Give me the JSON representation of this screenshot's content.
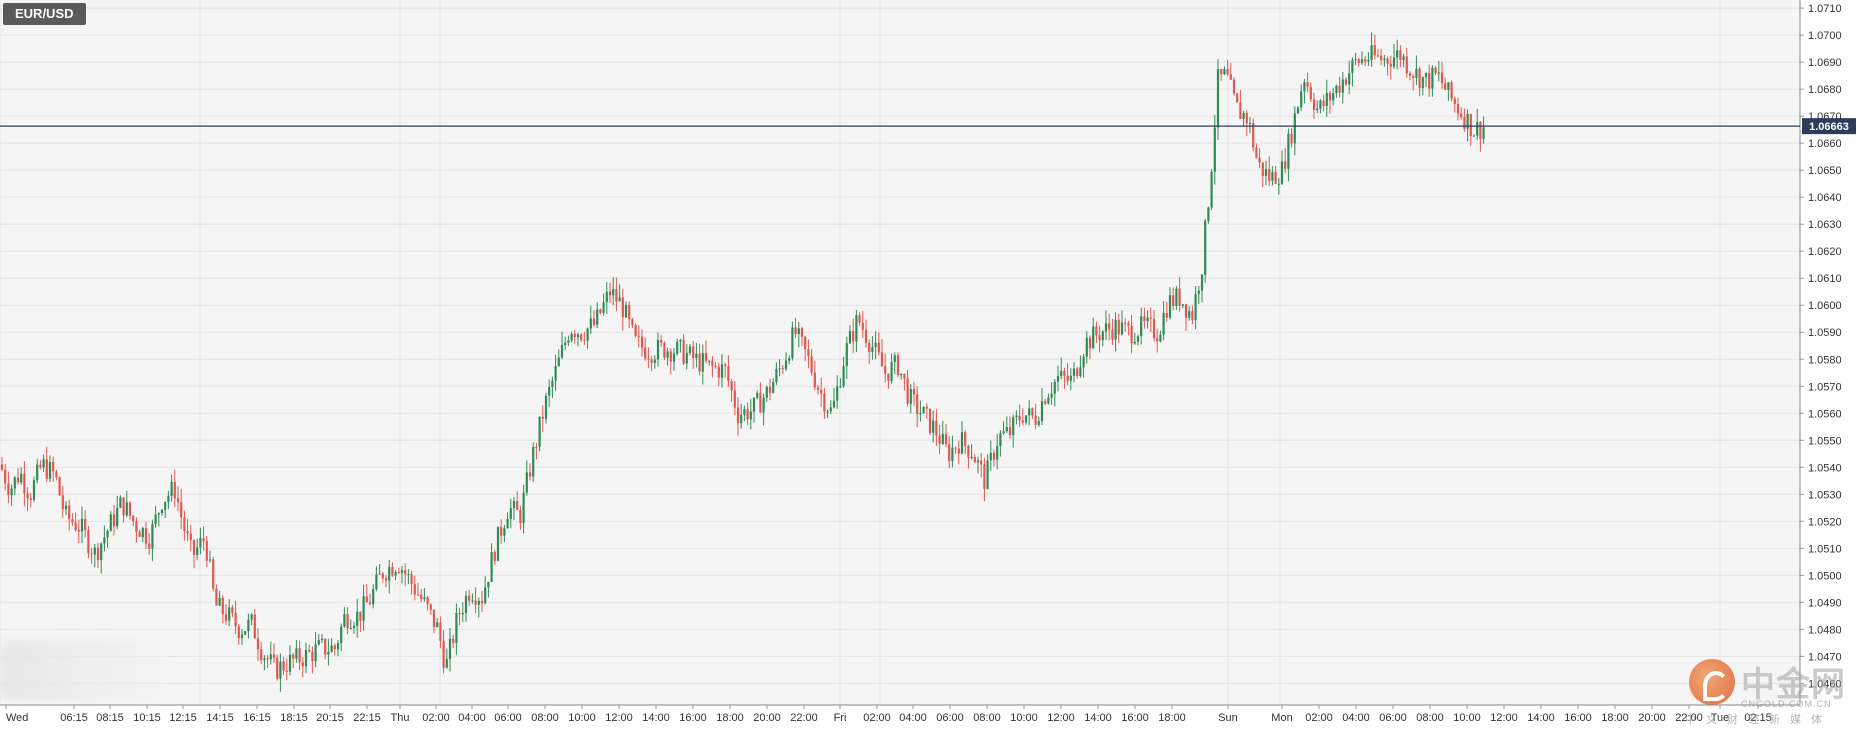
{
  "symbol": "EUR/USD",
  "current_price_label": "1.06663",
  "colors": {
    "up": "#2e8b57",
    "down": "#e0574f",
    "price_line": "#2b3d5a",
    "price_label_bg": "#2b3d5a",
    "grid": "#e4e4e4",
    "plot_bg": "#f5f5f5"
  },
  "watermark": {
    "title": "中金网",
    "url": "CNGOLD.COM.CN",
    "subtitle": "中文财经新媒体"
  },
  "chart_data": {
    "type": "candlestick",
    "ylim": [
      1.0452,
      1.0713
    ],
    "y_ticks": [
      "1.0460",
      "1.0470",
      "1.0480",
      "1.0490",
      "1.0500",
      "1.0510",
      "1.0520",
      "1.0530",
      "1.0540",
      "1.0550",
      "1.0560",
      "1.0570",
      "1.0580",
      "1.0590",
      "1.0600",
      "1.0610",
      "1.0620",
      "1.0630",
      "1.0640",
      "1.0650",
      "1.0660",
      "1.0670",
      "1.0680",
      "1.0690",
      "1.0700",
      "1.0710"
    ],
    "x_tick_labels": [
      "Wed",
      "06:15",
      "08:15",
      "10:15",
      "12:15",
      "14:15",
      "16:15",
      "18:15",
      "20:15",
      "22:15",
      "Thu",
      "02:00",
      "04:00",
      "06:00",
      "08:00",
      "10:00",
      "12:00",
      "14:00",
      "16:00",
      "18:00",
      "20:00",
      "22:00",
      "Fri",
      "02:00",
      "04:00",
      "06:00",
      "08:00",
      "10:00",
      "12:00",
      "14:00",
      "16:00",
      "18:00",
      "Sun",
      "Mon",
      "02:00",
      "04:00",
      "06:00",
      "08:00",
      "10:00",
      "12:00",
      "14:00",
      "16:00",
      "18:00",
      "20:00",
      "22:00",
      "Tue",
      "02:15"
    ],
    "current_price": 1.06663,
    "price_path": [
      [
        0,
        1.0541
      ],
      [
        10,
        1.0532
      ],
      [
        20,
        1.0538
      ],
      [
        30,
        1.053
      ],
      [
        42,
        1.0541
      ],
      [
        55,
        1.0537
      ],
      [
        65,
        1.0522
      ],
      [
        80,
        1.0518
      ],
      [
        95,
        1.0508
      ],
      [
        108,
        1.0517
      ],
      [
        122,
        1.0527
      ],
      [
        135,
        1.0519
      ],
      [
        150,
        1.0514
      ],
      [
        162,
        1.0528
      ],
      [
        175,
        1.0532
      ],
      [
        183,
        1.0519
      ],
      [
        192,
        1.0507
      ],
      [
        205,
        1.0514
      ],
      [
        215,
        1.0489
      ],
      [
        228,
        1.0485
      ],
      [
        240,
        1.048
      ],
      [
        252,
        1.0482
      ],
      [
        262,
        1.0472
      ],
      [
        275,
        1.0465
      ],
      [
        290,
        1.0468
      ],
      [
        305,
        1.047
      ],
      [
        320,
        1.0473
      ],
      [
        335,
        1.0473
      ],
      [
        345,
        1.0485
      ],
      [
        358,
        1.0485
      ],
      [
        370,
        1.0491
      ],
      [
        382,
        1.0501
      ],
      [
        398,
        1.0505
      ],
      [
        410,
        1.0498
      ],
      [
        425,
        1.0489
      ],
      [
        438,
        1.048
      ],
      [
        446,
        1.0466
      ],
      [
        458,
        1.0485
      ],
      [
        470,
        1.0495
      ],
      [
        482,
        1.0492
      ],
      [
        495,
        1.051
      ],
      [
        508,
        1.0525
      ],
      [
        520,
        1.0522
      ],
      [
        532,
        1.0543
      ],
      [
        545,
        1.0563
      ],
      [
        558,
        1.0578
      ],
      [
        570,
        1.0592
      ],
      [
        582,
        1.059
      ],
      [
        595,
        1.0593
      ],
      [
        610,
        1.0605
      ],
      [
        622,
        1.06
      ],
      [
        635,
        1.0586
      ],
      [
        650,
        1.0583
      ],
      [
        665,
        1.0584
      ],
      [
        680,
        1.0583
      ],
      [
        695,
        1.058
      ],
      [
        710,
        1.0577
      ],
      [
        725,
        1.0576
      ],
      [
        738,
        1.056
      ],
      [
        752,
        1.0561
      ],
      [
        768,
        1.0568
      ],
      [
        782,
        1.0578
      ],
      [
        795,
        1.059
      ],
      [
        808,
        1.058
      ],
      [
        820,
        1.0568
      ],
      [
        832,
        1.056
      ],
      [
        845,
        1.0582
      ],
      [
        858,
        1.0595
      ],
      [
        872,
        1.0585
      ],
      [
        885,
        1.0575
      ],
      [
        898,
        1.0578
      ],
      [
        910,
        1.0565
      ],
      [
        922,
        1.056
      ],
      [
        935,
        1.0554
      ],
      [
        948,
        1.0545
      ],
      [
        960,
        1.055
      ],
      [
        972,
        1.0546
      ],
      [
        985,
        1.0535
      ],
      [
        998,
        1.0551
      ],
      [
        1010,
        1.0553
      ],
      [
        1022,
        1.056
      ],
      [
        1035,
        1.0558
      ],
      [
        1045,
        1.0567
      ],
      [
        1058,
        1.0573
      ],
      [
        1072,
        1.0572
      ],
      [
        1085,
        1.0586
      ],
      [
        1100,
        1.059
      ],
      [
        1115,
        1.0592
      ],
      [
        1130,
        1.059
      ],
      [
        1145,
        1.0592
      ],
      [
        1158,
        1.059
      ],
      [
        1168,
        1.0601
      ],
      [
        1180,
        1.0603
      ],
      [
        1192,
        1.0596
      ],
      [
        1202,
        1.0615
      ],
      [
        1210,
        1.0645
      ],
      [
        1218,
        1.0683
      ],
      [
        1226,
        1.0685
      ],
      [
        1236,
        1.0673
      ],
      [
        1248,
        1.0669
      ],
      [
        1258,
        1.0652
      ],
      [
        1270,
        1.0647
      ],
      [
        1282,
        1.065
      ],
      [
        1292,
        1.0665
      ],
      [
        1304,
        1.0685
      ],
      [
        1318,
        1.0672
      ],
      [
        1330,
        1.0677
      ],
      [
        1342,
        1.0683
      ],
      [
        1356,
        1.069
      ],
      [
        1370,
        1.0692
      ],
      [
        1385,
        1.0691
      ],
      [
        1400,
        1.0693
      ],
      [
        1412,
        1.0687
      ],
      [
        1425,
        1.0683
      ],
      [
        1438,
        1.0685
      ],
      [
        1450,
        1.0677
      ],
      [
        1462,
        1.0671
      ],
      [
        1474,
        1.0665
      ],
      [
        1486,
        1.06663
      ]
    ]
  }
}
